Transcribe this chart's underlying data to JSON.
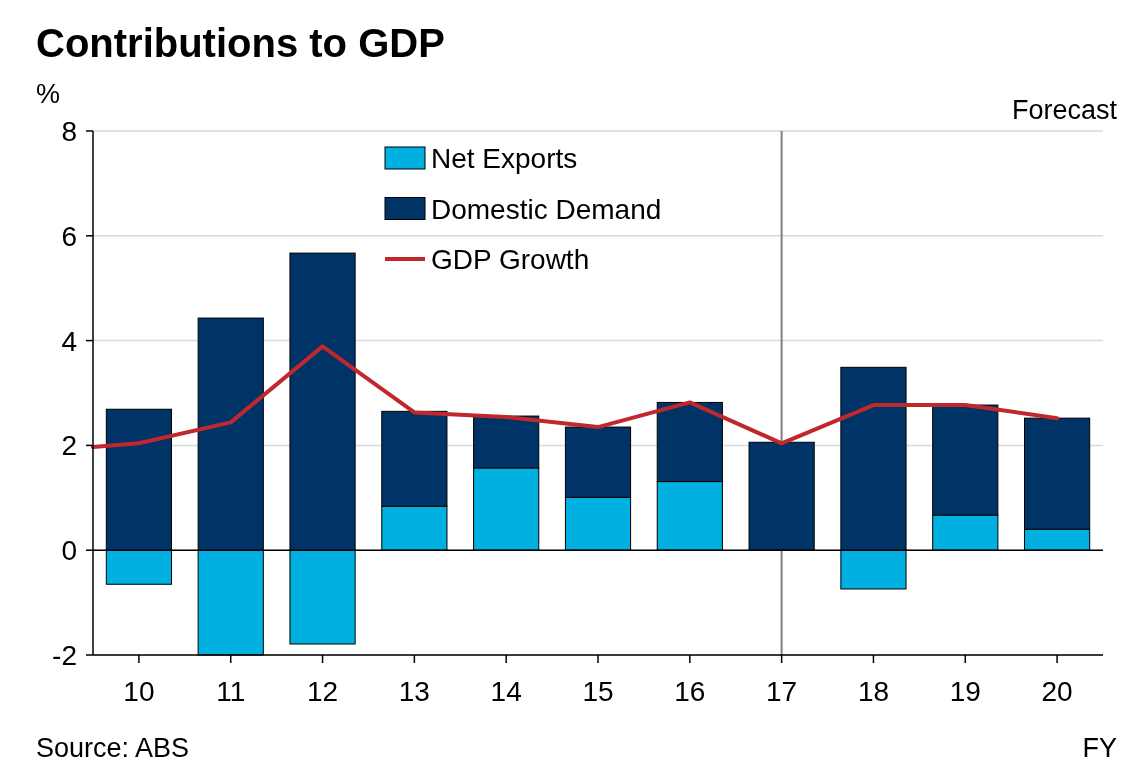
{
  "chart_data": {
    "type": "bar",
    "title": "Contributions to GDP",
    "ylabel": "%",
    "xlabel": "FY",
    "annotations": [
      "Forecast",
      "Source: ABS"
    ],
    "x": [
      10,
      11,
      12,
      13,
      14,
      15,
      16,
      17,
      18,
      19,
      20
    ],
    "xlim": [
      9.5,
      20.5
    ],
    "xticks": [
      10,
      11,
      12,
      13,
      14,
      15,
      16,
      17,
      18,
      19,
      20
    ],
    "ylim": [
      -2,
      8
    ],
    "yticks": [
      -2,
      0,
      2,
      4,
      6,
      8
    ],
    "grid": "y",
    "stacked": true,
    "legend": "top",
    "series": [
      {
        "name": "Net Exports",
        "color": "#00b0e0",
        "values": [
          -0.65,
          -2.0,
          -1.79,
          0.84,
          1.57,
          1.01,
          1.31,
          0,
          -0.74,
          0.67,
          0.4
        ]
      },
      {
        "name": "Domestic Demand",
        "color": "#003366",
        "values": [
          2.69,
          4.43,
          5.67,
          1.81,
          0.99,
          1.34,
          1.51,
          2.06,
          3.49,
          2.1,
          2.12
        ]
      },
      {
        "name": "GDP Growth",
        "type": "line",
        "color": "#c0282d",
        "x": [
          9.5,
          10,
          11,
          12,
          13,
          14,
          15,
          16,
          17,
          18,
          19,
          20
        ],
        "values": [
          1.97,
          2.04,
          2.44,
          3.89,
          2.63,
          2.54,
          2.35,
          2.82,
          2.04,
          2.77,
          2.77,
          2.52
        ]
      }
    ],
    "ref_lines": [
      {
        "axis": "x",
        "value": 17,
        "color": "#808080"
      }
    ]
  }
}
